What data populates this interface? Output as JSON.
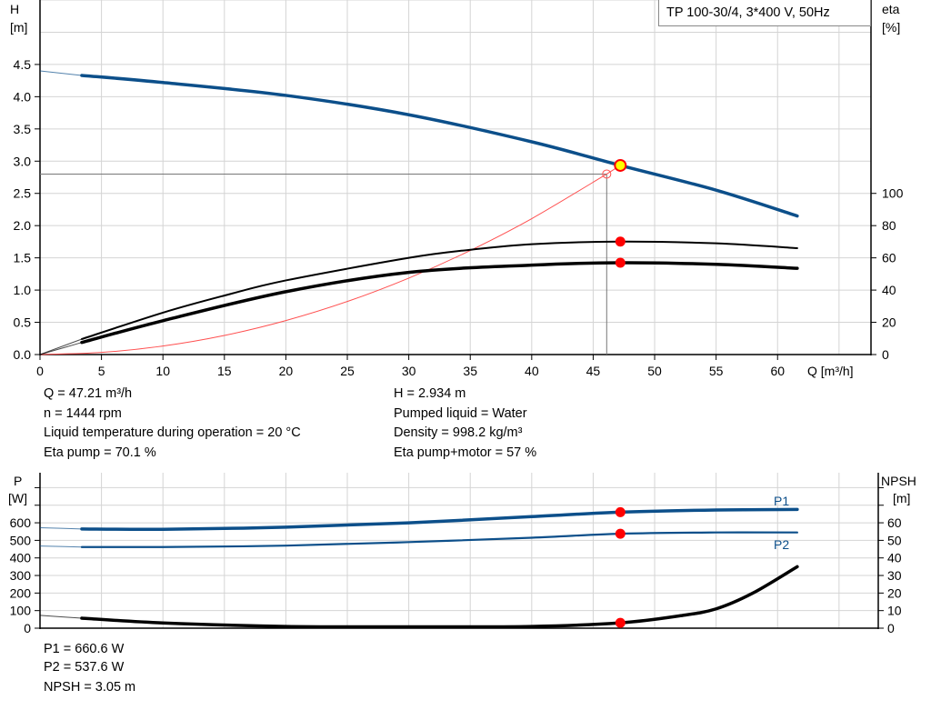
{
  "title": "TP 100-30/4, 3*400 V, 50Hz",
  "colors": {
    "head": "#0c4f8a",
    "efficiency": "#000000",
    "system": "#ff5050",
    "power": "#0c4f8a",
    "npsh": "#000000",
    "duty_point": "#ff0000",
    "duty_point_main": "#ffff00",
    "grid": "#d4d4d4"
  },
  "info_top": {
    "left": [
      "Q = 47.21 m³/h",
      "n = 1444 rpm",
      "Liquid temperature during operation = 20 °C",
      "Eta pump = 70.1 %"
    ],
    "right": [
      "H = 2.934 m",
      "Pumped liquid = Water",
      "Density = 998.2 kg/m³",
      "Eta pump+motor = 57 %"
    ]
  },
  "info_bottom": [
    "P1 = 660.6 W",
    "P2 = 537.6 W",
    "NPSH = 3.05 m"
  ],
  "chart_data": [
    {
      "type": "line",
      "xlabel": "Q [m³/h]",
      "ylabel": "H",
      "ylabel_unit": "[m]",
      "y2label": "eta",
      "y2label_unit": "[%]",
      "xlim": [
        0,
        67.6
      ],
      "ylim": [
        0,
        5.5
      ],
      "y2lim": [
        0,
        220
      ],
      "grid": true,
      "x_ticks": [
        "0",
        "5",
        "10",
        "15",
        "20",
        "25",
        "30",
        "35",
        "40",
        "45",
        "50",
        "55",
        "60"
      ],
      "y_ticks": [
        "0.0",
        "0.5",
        "1.0",
        "1.5",
        "2.0",
        "2.5",
        "3.0",
        "3.5",
        "4.0",
        "4.5"
      ],
      "y2_ticks": [
        "0",
        "20",
        "40",
        "60",
        "80",
        "100"
      ],
      "series": [
        {
          "key": "H",
          "axis": "left",
          "x": [
            0,
            3.4,
            10,
            20,
            30,
            40,
            47.21,
            55,
            61.6
          ],
          "y": [
            4.4,
            4.33,
            4.22,
            4.02,
            3.72,
            3.3,
            2.934,
            2.55,
            2.15
          ]
        },
        {
          "key": "eta_pump",
          "axis": "right",
          "x": [
            0,
            3.4,
            10,
            15,
            20,
            30,
            35,
            40,
            47.21,
            55,
            61.6
          ],
          "y": [
            0,
            9.6,
            26,
            36.6,
            46,
            60,
            65,
            68.5,
            70.1,
            69,
            66
          ]
        },
        {
          "key": "eta_pump_motor",
          "axis": "right",
          "x": [
            0,
            3.4,
            10,
            20,
            30,
            40,
            47.21,
            55,
            61.6
          ],
          "y": [
            0,
            7.5,
            21,
            39,
            51,
            55.5,
            57,
            56,
            53.5
          ]
        },
        {
          "key": "system_curve",
          "axis": "left",
          "x": [
            0,
            5,
            10,
            15,
            20,
            25,
            30,
            35,
            40,
            46.1
          ],
          "y": [
            0,
            0.033,
            0.132,
            0.296,
            0.527,
            0.823,
            1.186,
            1.614,
            2.108,
            2.8
          ]
        }
      ],
      "duty_point": {
        "Q": 47.21,
        "H": 2.934,
        "eta_pump": 70.1,
        "eta_pump_motor": 57
      },
      "system_point": {
        "Q": 46.1,
        "H": 2.8
      }
    },
    {
      "type": "line",
      "ylabel": "P",
      "ylabel_unit": "[W]",
      "y2label": "NPSH",
      "y2label_unit": "[m]",
      "xlim": [
        0,
        68.2
      ],
      "ylim": [
        0,
        885
      ],
      "y2lim": [
        0,
        88.5
      ],
      "grid": true,
      "y_ticks": [
        "0",
        "100",
        "200",
        "300",
        "400",
        "500",
        "600"
      ],
      "y2_ticks": [
        "0",
        "10",
        "20",
        "30",
        "40",
        "50",
        "60"
      ],
      "series": [
        {
          "name": "P1",
          "axis": "left",
          "x": [
            0,
            3.4,
            10,
            20,
            30,
            40,
            47.21,
            55,
            61.6
          ],
          "y": [
            572,
            565,
            563,
            575,
            600,
            635,
            660.6,
            673,
            676
          ]
        },
        {
          "name": "P2",
          "axis": "left",
          "x": [
            0,
            3.4,
            10,
            20,
            30,
            40,
            47.21,
            55,
            61.6
          ],
          "y": [
            468,
            462,
            462,
            470,
            490,
            515,
            537.6,
            545,
            545
          ]
        },
        {
          "key": "NPSH",
          "axis": "right",
          "x": [
            0,
            3.4,
            10,
            20,
            30,
            40,
            47.21,
            52,
            55,
            58,
            61.6
          ],
          "y": [
            7.3,
            5.7,
            3,
            1,
            0.8,
            1,
            3.05,
            7,
            11,
            20,
            35
          ]
        }
      ],
      "duty_point": {
        "Q": 47.21,
        "P1": 660.6,
        "P2": 537.6,
        "NPSH": 3.05
      }
    }
  ]
}
